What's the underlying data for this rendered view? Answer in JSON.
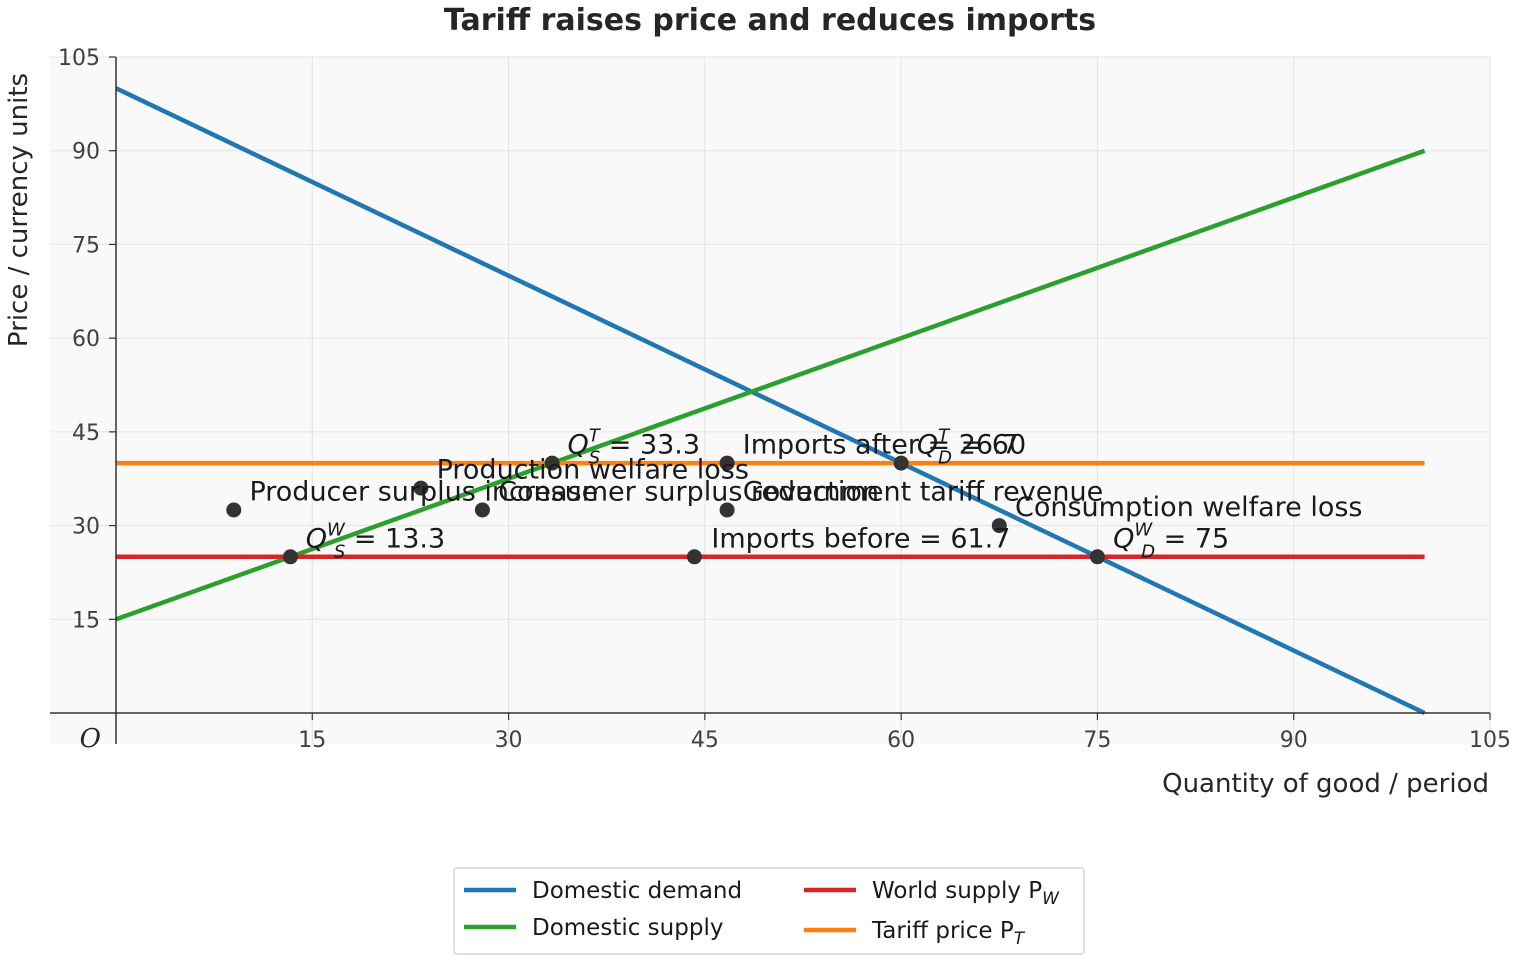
{
  "chart_data": {
    "type": "line",
    "title": "Tariff raises price and reduces imports",
    "xlabel": "Quantity of good / period",
    "ylabel": "Price / currency units",
    "origin_label": "O",
    "xlim": [
      -5,
      105
    ],
    "ylim": [
      -5,
      105
    ],
    "x_ticks": [
      15,
      30,
      45,
      60,
      75,
      90,
      105
    ],
    "y_ticks": [
      15,
      30,
      45,
      60,
      75,
      90,
      105
    ],
    "grid": true,
    "legend_position": "bottom-center",
    "series": [
      {
        "name": "Domestic demand",
        "color": "#1f77b4",
        "x": [
          0,
          100
        ],
        "y": [
          100,
          0
        ]
      },
      {
        "name": "Domestic supply",
        "color": "#2ca02c",
        "x": [
          0,
          100
        ],
        "y": [
          15,
          90
        ]
      },
      {
        "name": "World supply P_W",
        "color": "#d62728",
        "x": [
          0,
          100
        ],
        "y": [
          25,
          25
        ]
      },
      {
        "name": "Tariff price P_T",
        "color": "#ff7f0e",
        "x": [
          0,
          100
        ],
        "y": [
          40,
          40
        ]
      }
    ],
    "legend": [
      {
        "text": "Domestic demand",
        "sub": "",
        "color": "#1f77b4"
      },
      {
        "text": "Domestic supply",
        "sub": "",
        "color": "#2ca02c"
      },
      {
        "text": "World supply P",
        "sub": "W",
        "color": "#d62728"
      },
      {
        "text": "Tariff price P",
        "sub": "T",
        "color": "#ff7f0e"
      }
    ],
    "points": [
      {
        "x": 13.33,
        "y": 25
      },
      {
        "x": 75,
        "y": 25
      },
      {
        "x": 33.33,
        "y": 40
      },
      {
        "x": 60,
        "y": 40
      },
      {
        "x": 44.2,
        "y": 25
      },
      {
        "x": 46.7,
        "y": 40
      },
      {
        "x": 9,
        "y": 32.5
      },
      {
        "x": 23.3,
        "y": 36
      },
      {
        "x": 28,
        "y": 32.5
      },
      {
        "x": 46.7,
        "y": 32.5
      },
      {
        "x": 67.5,
        "y": 30
      }
    ],
    "annotations": [
      {
        "x": 14.5,
        "y": 26.5,
        "q": "Q",
        "sup": "W",
        "sub": "S",
        "eq": " = 13.3",
        "text": ""
      },
      {
        "x": 76.2,
        "y": 26.5,
        "q": "Q",
        "sup": "W",
        "sub": "D",
        "eq": " = 75",
        "text": ""
      },
      {
        "x": 34.5,
        "y": 41.5,
        "q": "Q",
        "sup": "T",
        "sub": "S",
        "eq": " = 33.3",
        "text": ""
      },
      {
        "x": 61.2,
        "y": 41.5,
        "q": "Q",
        "sup": "T",
        "sub": "D",
        "eq": " = 60",
        "text": ""
      },
      {
        "x": 45.5,
        "y": 26.5,
        "text": "Imports before  = 61.7"
      },
      {
        "x": 47.9,
        "y": 41.5,
        "text": "Imports after  = 26.7"
      },
      {
        "x": 10.2,
        "y": 34.0,
        "text": "Producer surplus increase"
      },
      {
        "x": 24.5,
        "y": 37.5,
        "text": "Production welfare loss"
      },
      {
        "x": 29.2,
        "y": 34.0,
        "text": "Consumer surplus reduction"
      },
      {
        "x": 47.9,
        "y": 34.0,
        "text": "Government tariff revenue"
      },
      {
        "x": 68.7,
        "y": 31.5,
        "text": "Consumption welfare loss"
      }
    ]
  }
}
